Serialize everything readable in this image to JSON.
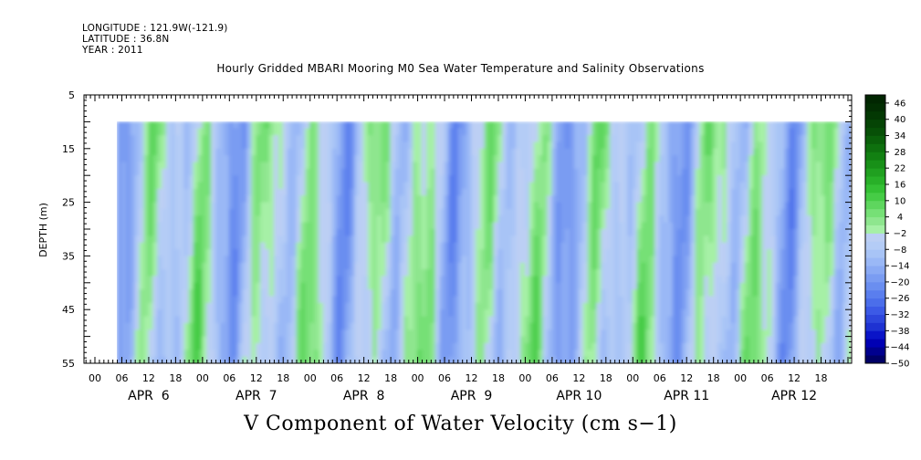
{
  "meta": {
    "longitude": "LONGITUDE : 121.9W(-121.9)",
    "latitude": "LATITUDE : 36.8N",
    "year": "YEAR : 2011"
  },
  "chart_data": {
    "type": "heatmap",
    "title": "Hourly Gridded MBARI Mooring M0 Sea Water Temperature and Salinity Observations",
    "xlabel": "V Component of Water Velocity (cm s−1)",
    "ylabel": "DEPTH (m)",
    "y_ticks": [
      5,
      15,
      25,
      35,
      45,
      55
    ],
    "ylim": [
      5,
      55
    ],
    "y_inverted": true,
    "data_depth_range": [
      10,
      55
    ],
    "x_hour_ticks": [
      "00",
      "06",
      "12",
      "18",
      "00",
      "06",
      "12",
      "18",
      "00",
      "06",
      "12",
      "18",
      "00",
      "06",
      "12",
      "18",
      "00",
      "06",
      "12",
      "18",
      "00",
      "06",
      "12",
      "18",
      "00",
      "06",
      "12",
      "18"
    ],
    "x_day_labels": [
      "APR  6",
      "APR  7",
      "APR  8",
      "APR  9",
      "APR 10",
      "APR 11",
      "APR 12"
    ],
    "colorbar": {
      "labels": [
        "46",
        "40",
        "34",
        "28",
        "22",
        "16",
        "10",
        "4",
        "−2",
        "−8",
        "−14",
        "−20",
        "−26",
        "−32",
        "−38",
        "−44",
        "−50"
      ],
      "min": -50,
      "max": 49,
      "step": 3,
      "colors_low_to_high": [
        "#000066",
        "#00008e",
        "#0000b4",
        "#0a14c8",
        "#1e32d2",
        "#2d46dc",
        "#3c5ae6",
        "#4b6eea",
        "#5a7eee",
        "#6a8ef0",
        "#7a9cf2",
        "#8aaaf4",
        "#9ab8f6",
        "#a8c4f6",
        "#b4ccf6",
        "#bccff4",
        "#a6f0a6",
        "#8ee68e",
        "#76e076",
        "#5ed65e",
        "#46cc46",
        "#34c034",
        "#28b028",
        "#20a020",
        "#189018",
        "#128012",
        "#0e700e",
        "#0a600a",
        "#075007",
        "#054405",
        "#033803",
        "#022e02",
        "#012601"
      ]
    },
    "v_range_displayed": [
      -32,
      16
    ],
    "grid": false
  }
}
